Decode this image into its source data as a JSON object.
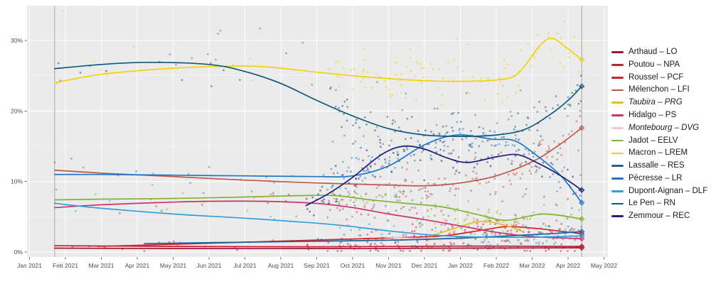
{
  "figure": {
    "background": "#ffffff",
    "plot_background": "#ebebeb",
    "grid_major_color": "#ffffff",
    "grid_minor_color": "#ffffff",
    "axis_text_color": "#4d4d4d",
    "tick_mark_color": "#333333",
    "event_line_color": "#a6a6a6"
  },
  "chart_data": {
    "type": "scatter",
    "title": "",
    "xlabel": "",
    "ylabel": "",
    "legend_position": "right",
    "grid": true,
    "x_axis": {
      "labels": [
        "Jan 2021",
        "Feb 2021",
        "Mar 2021",
        "Apr 2021",
        "May 2021",
        "Jun 2021",
        "Jul 2021",
        "Aug 2021",
        "Sep 2021",
        "Oct 2021",
        "Nov 2021",
        "Dec 2021",
        "Jan 2022",
        "Feb 2022",
        "Mar 2022",
        "Apr 2022",
        "May 2022"
      ],
      "month_index_range": [
        0,
        16
      ]
    },
    "y_axis": {
      "tick_labels": [
        "0%",
        "10%",
        "20%",
        "30%"
      ],
      "tick_values": [
        0,
        10,
        20,
        30
      ],
      "minor_tick_values": [
        5,
        15,
        25
      ],
      "range": [
        0,
        34.9
      ]
    },
    "event_lines_months": [
      0.7,
      15.38
    ],
    "series": [
      {
        "key": "arthaud",
        "legend_label": "Arthaud – LO",
        "color": "#a0162c",
        "italic": false,
        "end_marker": true,
        "trend": [
          [
            0.7,
            0.55
          ],
          [
            4,
            0.5
          ],
          [
            8,
            0.5
          ],
          [
            12,
            0.55
          ],
          [
            15.38,
            0.6
          ]
        ],
        "scatter": [
          {
            "count": 6,
            "from": 0.7,
            "to": 8.3,
            "sd": 0.3
          },
          {
            "count": 35,
            "from": 8.3,
            "to": 15.38,
            "sd": 0.35
          }
        ]
      },
      {
        "key": "poutou",
        "legend_label": "Poutou – NPA",
        "color": "#c02038",
        "italic": false,
        "end_marker": true,
        "trend": [
          [
            0.7,
            0.9
          ],
          [
            4,
            0.8
          ],
          [
            8,
            0.75
          ],
          [
            12,
            0.85
          ],
          [
            15.38,
            0.8
          ]
        ],
        "scatter": [
          {
            "count": 6,
            "from": 0.7,
            "to": 8.3,
            "sd": 0.3
          },
          {
            "count": 35,
            "from": 8.3,
            "to": 15.38,
            "sd": 0.35
          }
        ]
      },
      {
        "key": "roussel",
        "legend_label": "Roussel – PCF",
        "color": "#d42028",
        "italic": false,
        "end_marker": true,
        "trend": [
          [
            1.9,
            0.8
          ],
          [
            4,
            1.1
          ],
          [
            6,
            1.4
          ],
          [
            8,
            1.7
          ],
          [
            10,
            2.0
          ],
          [
            11.5,
            2.3
          ],
          [
            12.6,
            3.1
          ],
          [
            13.3,
            3.6
          ],
          [
            14.2,
            3.3
          ],
          [
            15.38,
            2.6
          ]
        ],
        "scatter": [
          {
            "count": 6,
            "from": 1.9,
            "to": 8.3,
            "sd": 0.5
          },
          {
            "count": 60,
            "from": 8.3,
            "to": 15.38,
            "sd": 0.7
          }
        ]
      },
      {
        "key": "melenchon",
        "legend_label": "Mélenchon – LFI",
        "color": "#c0564a",
        "italic": false,
        "end_marker": true,
        "trend": [
          [
            0.7,
            11.6
          ],
          [
            2,
            11.2
          ],
          [
            4,
            10.7
          ],
          [
            6,
            10.2
          ],
          [
            8,
            9.8
          ],
          [
            10,
            9.5
          ],
          [
            11,
            9.4
          ],
          [
            12,
            9.8
          ],
          [
            13,
            10.8
          ],
          [
            14,
            12.8
          ],
          [
            14.7,
            15.0
          ],
          [
            15.38,
            17.6
          ]
        ],
        "scatter": [
          {
            "count": 10,
            "from": 0.7,
            "to": 8.3,
            "sd": 1.1
          },
          {
            "count": 100,
            "from": 8.3,
            "to": 15.38,
            "sd": 1.3
          }
        ]
      },
      {
        "key": "taubira",
        "legend_label": "Taubira – PRG",
        "color": "#e0c020",
        "italic": true,
        "end_marker": false,
        "trend": [
          [
            11.2,
            2.3
          ],
          [
            11.8,
            3.3
          ],
          [
            12.4,
            4.2
          ],
          [
            12.8,
            4.3
          ],
          [
            13.3,
            3.7
          ],
          [
            13.75,
            2.9
          ]
        ],
        "scatter": [
          {
            "count": 30,
            "from": 11.2,
            "to": 13.75,
            "sd": 0.8
          }
        ]
      },
      {
        "key": "hidalgo",
        "legend_label": "Hidalgo – PS",
        "color": "#cc3366",
        "italic": false,
        "end_marker": true,
        "trend": [
          [
            0.7,
            6.3
          ],
          [
            2,
            6.7
          ],
          [
            3.5,
            7.0
          ],
          [
            5,
            7.2
          ],
          [
            6.5,
            7.2
          ],
          [
            8,
            6.9
          ],
          [
            9,
            6.3
          ],
          [
            10,
            5.4
          ],
          [
            11,
            4.6
          ],
          [
            12,
            3.7
          ],
          [
            13,
            2.8
          ],
          [
            14,
            2.2
          ],
          [
            15.38,
            1.9
          ]
        ],
        "scatter": [
          {
            "count": 8,
            "from": 0.7,
            "to": 8.3,
            "sd": 0.8
          },
          {
            "count": 70,
            "from": 8.3,
            "to": 15.38,
            "sd": 0.9
          }
        ]
      },
      {
        "key": "montebourg",
        "legend_label": "Montebourg – DVG",
        "color": "#f6c6d8",
        "italic": true,
        "end_marker": false,
        "trend": [
          [
            9.9,
            2.1
          ],
          [
            11,
            1.9
          ],
          [
            12.1,
            1.8
          ]
        ],
        "scatter": [
          {
            "count": 10,
            "from": 9.9,
            "to": 12.1,
            "sd": 0.5
          }
        ]
      },
      {
        "key": "jadot",
        "legend_label": "Jadot – EELV",
        "color": "#80b432",
        "italic": false,
        "end_marker": true,
        "trend": [
          [
            0.7,
            7.4
          ],
          [
            2,
            7.5
          ],
          [
            4,
            7.6
          ],
          [
            6,
            7.8
          ],
          [
            7.5,
            8.0
          ],
          [
            8.5,
            8.0
          ],
          [
            9.5,
            7.4
          ],
          [
            10.5,
            6.9
          ],
          [
            11.5,
            6.4
          ],
          [
            12.5,
            5.3
          ],
          [
            13.3,
            4.5
          ],
          [
            14.3,
            5.4
          ],
          [
            15.38,
            4.7
          ]
        ],
        "scatter": [
          {
            "count": 8,
            "from": 0.7,
            "to": 8.3,
            "sd": 0.9
          },
          {
            "count": 70,
            "from": 8.3,
            "to": 15.38,
            "sd": 1.0
          }
        ]
      },
      {
        "key": "macron",
        "legend_label": "Macron – LREM",
        "color": "#f2d20c",
        "italic": false,
        "end_marker": true,
        "trend": [
          [
            0.7,
            24.0
          ],
          [
            2,
            25.2
          ],
          [
            3.5,
            25.9
          ],
          [
            5,
            26.3
          ],
          [
            6.5,
            26.3
          ],
          [
            8,
            25.5
          ],
          [
            9,
            25.0
          ],
          [
            10,
            24.6
          ],
          [
            11,
            24.3
          ],
          [
            12,
            24.2
          ],
          [
            13,
            24.4
          ],
          [
            13.6,
            25.3
          ],
          [
            14.2,
            29.2
          ],
          [
            14.55,
            30.3
          ],
          [
            14.95,
            29.0
          ],
          [
            15.38,
            27.3
          ]
        ],
        "scatter": [
          {
            "count": 10,
            "from": 0.7,
            "to": 8.3,
            "sd": 1.6
          },
          {
            "count": 110,
            "from": 8.3,
            "to": 15.38,
            "sd": 1.9
          }
        ],
        "extra_points": [
          [
            0.93,
            34.2
          ],
          [
            10.6,
            28.8
          ],
          [
            11.9,
            30.2
          ],
          [
            12.2,
            29.4
          ]
        ]
      },
      {
        "key": "lassalle",
        "legend_label": "Lassalle – RES",
        "color": "#1b6399",
        "italic": false,
        "end_marker": true,
        "trend": [
          [
            3.2,
            1.2
          ],
          [
            6,
            1.4
          ],
          [
            9,
            1.6
          ],
          [
            11,
            1.8
          ],
          [
            13,
            2.2
          ],
          [
            14.5,
            2.6
          ],
          [
            15.38,
            2.9
          ]
        ],
        "scatter": [
          {
            "count": 5,
            "from": 3.2,
            "to": 8.3,
            "sd": 0.5
          },
          {
            "count": 45,
            "from": 8.3,
            "to": 15.38,
            "sd": 0.7
          }
        ]
      },
      {
        "key": "pecresse",
        "legend_label": "Pécresse – LR",
        "color": "#1e78c8",
        "italic": false,
        "end_marker": true,
        "trend": [
          [
            0.7,
            11.0
          ],
          [
            2,
            11.0
          ],
          [
            4,
            10.9
          ],
          [
            6,
            10.8
          ],
          [
            8,
            10.7
          ],
          [
            9,
            10.8
          ],
          [
            10,
            12.2
          ],
          [
            11,
            15.2
          ],
          [
            11.9,
            16.6
          ],
          [
            12.9,
            16.0
          ],
          [
            13.5,
            15.8
          ],
          [
            14.1,
            13.8
          ],
          [
            14.8,
            10.8
          ],
          [
            15.38,
            7.0
          ]
        ],
        "scatter": [
          {
            "count": 8,
            "from": 0.7,
            "to": 8.3,
            "sd": 1.2
          },
          {
            "count": 95,
            "from": 8.3,
            "to": 15.38,
            "sd": 1.5
          }
        ]
      },
      {
        "key": "dupont_aignan",
        "legend_label": "Dupont-Aignan – DLF",
        "color": "#30a0dc",
        "italic": false,
        "end_marker": true,
        "trend": [
          [
            0.7,
            6.9
          ],
          [
            2,
            6.2
          ],
          [
            4,
            5.4
          ],
          [
            6,
            4.8
          ],
          [
            8,
            4.1
          ],
          [
            9,
            3.6
          ],
          [
            10,
            3.0
          ],
          [
            11,
            2.5
          ],
          [
            12,
            2.2
          ],
          [
            13,
            2.1
          ],
          [
            14,
            2.1
          ],
          [
            15.38,
            2.3
          ]
        ],
        "scatter": [
          {
            "count": 8,
            "from": 0.7,
            "to": 8.3,
            "sd": 0.8
          },
          {
            "count": 60,
            "from": 8.3,
            "to": 15.38,
            "sd": 0.8
          }
        ]
      },
      {
        "key": "lepen",
        "legend_label": "Le Pen – RN",
        "color": "#10587c",
        "italic": false,
        "end_marker": true,
        "trend": [
          [
            0.7,
            26.0
          ],
          [
            2,
            26.6
          ],
          [
            3.3,
            26.9
          ],
          [
            5,
            26.6
          ],
          [
            6,
            25.6
          ],
          [
            7,
            23.9
          ],
          [
            8,
            21.5
          ],
          [
            9,
            19.3
          ],
          [
            10,
            17.5
          ],
          [
            11,
            16.6
          ],
          [
            12,
            16.4
          ],
          [
            13,
            16.6
          ],
          [
            13.8,
            17.4
          ],
          [
            14.5,
            19.5
          ],
          [
            15.0,
            21.5
          ],
          [
            15.38,
            23.5
          ]
        ],
        "scatter": [
          {
            "count": 10,
            "from": 0.7,
            "to": 8.3,
            "sd": 1.5
          },
          {
            "count": 100,
            "from": 8.3,
            "to": 15.38,
            "sd": 1.6
          }
        ]
      },
      {
        "key": "zemmour",
        "legend_label": "Zemmour – REC",
        "color": "#20207a",
        "italic": false,
        "end_marker": true,
        "trend": [
          [
            7.7,
            6.6
          ],
          [
            8.3,
            8.2
          ],
          [
            9,
            10.6
          ],
          [
            9.8,
            13.8
          ],
          [
            10.4,
            15.0
          ],
          [
            11,
            14.6
          ],
          [
            11.6,
            13.4
          ],
          [
            12.2,
            12.7
          ],
          [
            13,
            13.5
          ],
          [
            13.6,
            13.8
          ],
          [
            14.2,
            12.5
          ],
          [
            14.8,
            10.8
          ],
          [
            15.38,
            8.8
          ]
        ],
        "scatter": [
          {
            "count": 90,
            "from": 7.7,
            "to": 15.38,
            "sd": 1.4
          }
        ]
      },
      {
        "key": "other_points",
        "legend_label": null,
        "color": "#6e6e6e",
        "italic": false,
        "end_marker": false,
        "trend": null,
        "scatter": [
          {
            "count": 12,
            "from": 1.5,
            "to": 8.0,
            "base": 28.5,
            "sd": 2.2
          },
          {
            "count": 95,
            "from": 8.3,
            "to": 15.38,
            "base": 14,
            "sd": 4.5
          },
          {
            "count": 25,
            "from": 8.3,
            "to": 15.38,
            "base": 5,
            "sd": 2.0
          }
        ]
      }
    ]
  }
}
